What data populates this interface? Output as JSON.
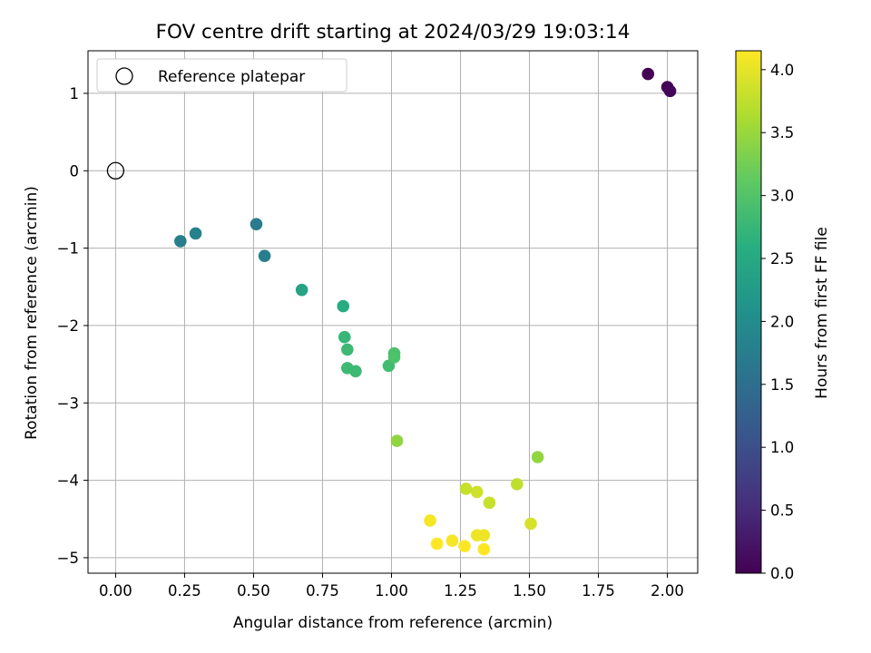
{
  "chart_data": {
    "type": "scatter",
    "title": "FOV centre drift starting at 2024/03/29 19:03:14",
    "xlabel": "Angular distance from reference (arcmin)",
    "ylabel": "Rotation from reference (arcmin)",
    "xlim": [
      -0.1,
      2.11
    ],
    "ylim": [
      -5.2,
      1.55
    ],
    "xticks": [
      0.0,
      0.25,
      0.5,
      0.75,
      1.0,
      1.25,
      1.5,
      1.75,
      2.0
    ],
    "xtick_labels": [
      "0.00",
      "0.25",
      "0.50",
      "0.75",
      "1.00",
      "1.25",
      "1.50",
      "1.75",
      "2.00"
    ],
    "yticks": [
      1,
      0,
      -1,
      -2,
      -3,
      -4,
      -5
    ],
    "ytick_labels": [
      "1",
      "0",
      "−1",
      "−2",
      "−3",
      "−4",
      "−5"
    ],
    "grid": true,
    "legend": {
      "placement": "top-left",
      "entries": [
        {
          "label": "Reference platepar",
          "marker": "open-circle"
        }
      ]
    },
    "reference_point": {
      "x": 0.0,
      "y": 0.0
    },
    "colorbar": {
      "label": "Hours from first FF file",
      "range": [
        0.0,
        4.15
      ],
      "ticks": [
        0.0,
        0.5,
        1.0,
        1.5,
        2.0,
        2.5,
        3.0,
        3.5,
        4.0
      ],
      "tick_labels": [
        "0.0",
        "0.5",
        "1.0",
        "1.5",
        "2.0",
        "2.5",
        "3.0",
        "3.5",
        "4.0"
      ],
      "colormap": "viridis"
    },
    "points": [
      {
        "x": 1.93,
        "y": 1.25,
        "c": 0.0
      },
      {
        "x": 2.0,
        "y": 1.08,
        "c": 0.03
      },
      {
        "x": 2.01,
        "y": 1.03,
        "c": 0.06
      },
      {
        "x": 0.235,
        "y": -0.91,
        "c": 1.75
      },
      {
        "x": 0.29,
        "y": -0.81,
        "c": 1.8
      },
      {
        "x": 0.51,
        "y": -0.69,
        "c": 1.7
      },
      {
        "x": 0.54,
        "y": -1.1,
        "c": 1.75
      },
      {
        "x": 0.675,
        "y": -1.54,
        "c": 2.4
      },
      {
        "x": 0.825,
        "y": -1.75,
        "c": 2.55
      },
      {
        "x": 0.83,
        "y": -2.15,
        "c": 2.75
      },
      {
        "x": 0.84,
        "y": -2.31,
        "c": 2.8
      },
      {
        "x": 0.84,
        "y": -2.55,
        "c": 2.8
      },
      {
        "x": 0.87,
        "y": -2.59,
        "c": 2.8
      },
      {
        "x": 0.99,
        "y": -2.52,
        "c": 2.85
      },
      {
        "x": 1.01,
        "y": -2.36,
        "c": 2.95
      },
      {
        "x": 1.01,
        "y": -2.41,
        "c": 2.95
      },
      {
        "x": 1.02,
        "y": -3.49,
        "c": 3.45
      },
      {
        "x": 1.53,
        "y": -3.7,
        "c": 3.45
      },
      {
        "x": 1.455,
        "y": -4.05,
        "c": 3.75
      },
      {
        "x": 1.27,
        "y": -4.11,
        "c": 3.8
      },
      {
        "x": 1.31,
        "y": -4.15,
        "c": 3.85
      },
      {
        "x": 1.355,
        "y": -4.29,
        "c": 3.8
      },
      {
        "x": 1.505,
        "y": -4.56,
        "c": 3.9
      },
      {
        "x": 1.14,
        "y": -4.52,
        "c": 4.1
      },
      {
        "x": 1.31,
        "y": -4.71,
        "c": 4.05
      },
      {
        "x": 1.335,
        "y": -4.71,
        "c": 4.05
      },
      {
        "x": 1.22,
        "y": -4.78,
        "c": 4.1
      },
      {
        "x": 1.165,
        "y": -4.82,
        "c": 4.15
      },
      {
        "x": 1.265,
        "y": -4.85,
        "c": 4.15
      },
      {
        "x": 1.335,
        "y": -4.89,
        "c": 4.15
      }
    ]
  }
}
